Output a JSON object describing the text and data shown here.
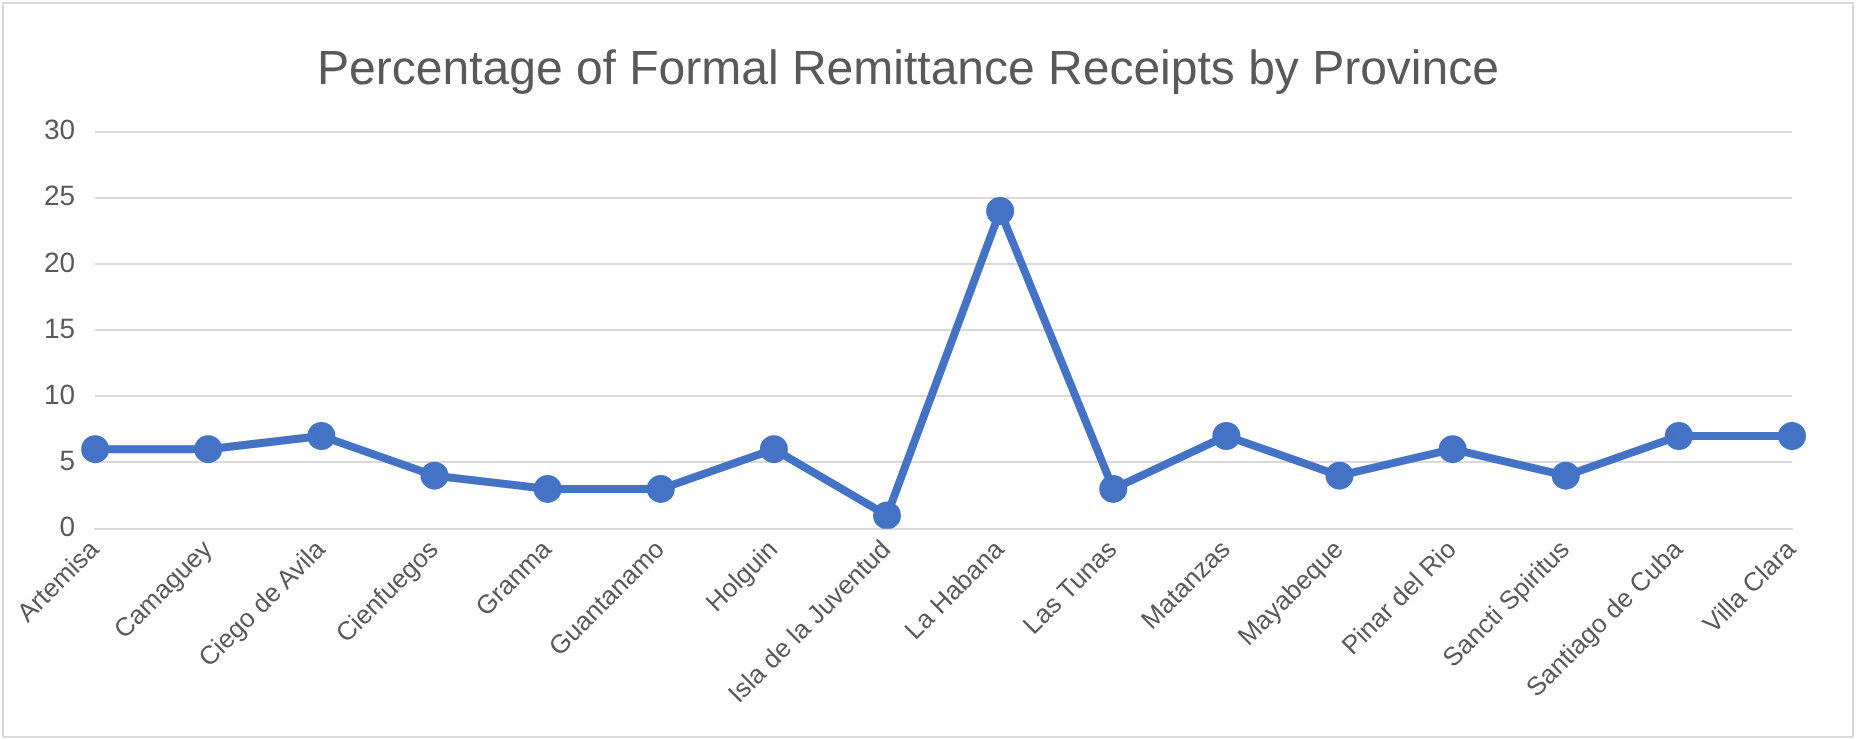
{
  "chart_data": {
    "type": "line",
    "title": "Percentage of Formal Remittance Receipts by Province",
    "categories": [
      "Artemisa",
      "Camaguey",
      "Ciego de Avila",
      "Cienfuegos",
      "Granma",
      "Guantanamo",
      "Holguin",
      "Isla de la Juventud",
      "La Habana",
      "Las Tunas",
      "Matanzas",
      "Mayabeque",
      "Pinar del Rio",
      "Sancti Spiritus",
      "Santiago de Cuba",
      "Villa Clara"
    ],
    "series": [
      {
        "color": "#4472c4",
        "values": [
          6,
          6,
          7,
          4,
          3,
          3,
          6,
          1,
          24,
          3,
          7,
          4,
          6,
          4,
          7,
          7
        ]
      }
    ],
    "ylim": [
      0,
      30
    ],
    "yticks": [
      0,
      5,
      10,
      15,
      20,
      25,
      30
    ],
    "grid": "y",
    "legend": false,
    "marker": "circle",
    "line_style": "solid"
  }
}
